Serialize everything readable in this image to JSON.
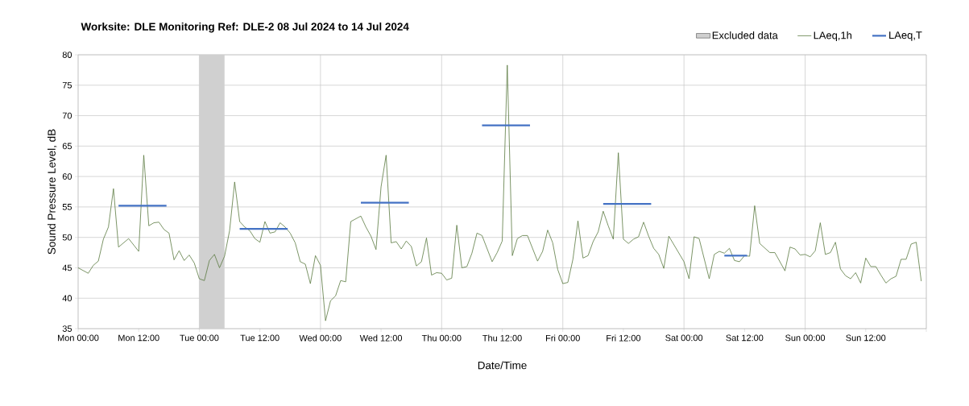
{
  "chart_data": {
    "type": "line",
    "title": "Worksite: DLE    Monitoring Ref: DLE-2     08 Jul 2024 to 14 Jul 2024",
    "xlabel": "Date/Time",
    "ylabel": "Sound Pressure Level, dB",
    "xlim": [
      "2024-07-08T00:00",
      "2024-07-15T00:00"
    ],
    "ylim": [
      35,
      80
    ],
    "xticks": [
      {
        "value": "2024-07-08T00:00",
        "label": "Mon 00:00"
      },
      {
        "value": "2024-07-08T12:00",
        "label": "Mon 12:00"
      },
      {
        "value": "2024-07-09T00:00",
        "label": "Tue 00:00"
      },
      {
        "value": "2024-07-09T12:00",
        "label": "Tue 12:00"
      },
      {
        "value": "2024-07-10T00:00",
        "label": "Wed 00:00"
      },
      {
        "value": "2024-07-10T12:00",
        "label": "Wed 12:00"
      },
      {
        "value": "2024-07-11T00:00",
        "label": "Thu 00:00"
      },
      {
        "value": "2024-07-11T12:00",
        "label": "Thu 12:00"
      },
      {
        "value": "2024-07-12T00:00",
        "label": "Fri 00:00"
      },
      {
        "value": "2024-07-12T12:00",
        "label": "Fri 12:00"
      },
      {
        "value": "2024-07-13T00:00",
        "label": "Sat 00:00"
      },
      {
        "value": "2024-07-13T12:00",
        "label": "Sat 12:00"
      },
      {
        "value": "2024-07-14T00:00",
        "label": "Sun 00:00"
      },
      {
        "value": "2024-07-14T12:00",
        "label": "Sun 12:00"
      },
      {
        "value": "2024-07-15T00:00",
        "label": null
      }
    ],
    "yticks": [
      35,
      40,
      45,
      50,
      55,
      60,
      65,
      70,
      75,
      80
    ],
    "grid": true,
    "legend": "top right",
    "bands": [
      {
        "axis": "x",
        "from": "2024-07-09T00:00",
        "to": "2024-07-09T05:00",
        "label": "Excluded data",
        "color": "#d0d0d0"
      }
    ],
    "series": [
      {
        "name": "LAeq,1h",
        "color": "#5a7a40",
        "x": [
          "2024-07-08T00:00",
          "2024-07-08T02:00",
          "2024-07-08T03:00",
          "2024-07-08T04:00",
          "2024-07-08T05:00",
          "2024-07-08T06:00",
          "2024-07-08T07:00",
          "2024-07-08T08:00",
          "2024-07-08T10:00",
          "2024-07-08T12:00",
          "2024-07-08T13:00",
          "2024-07-08T14:00",
          "2024-07-08T15:00",
          "2024-07-08T16:00",
          "2024-07-08T17:00",
          "2024-07-08T18:00",
          "2024-07-08T19:00",
          "2024-07-08T20:00",
          "2024-07-08T21:00",
          "2024-07-08T22:00",
          "2024-07-08T23:00",
          "2024-07-09T00:00",
          "2024-07-09T01:00",
          "2024-07-09T02:00",
          "2024-07-09T03:00",
          "2024-07-09T04:00",
          "2024-07-09T05:00",
          "2024-07-09T06:00",
          "2024-07-09T07:00",
          "2024-07-09T08:00",
          "2024-07-09T09:00",
          "2024-07-09T10:00",
          "2024-07-09T11:00",
          "2024-07-09T12:00",
          "2024-07-09T13:00",
          "2024-07-09T14:00",
          "2024-07-09T15:00",
          "2024-07-09T16:00",
          "2024-07-09T17:00",
          "2024-07-09T18:00",
          "2024-07-09T19:00",
          "2024-07-09T20:00",
          "2024-07-09T21:00",
          "2024-07-09T22:00",
          "2024-07-09T23:00",
          "2024-07-10T00:00",
          "2024-07-10T01:00",
          "2024-07-10T02:00",
          "2024-07-10T03:00",
          "2024-07-10T04:00",
          "2024-07-10T05:00",
          "2024-07-10T06:00",
          "2024-07-10T08:00",
          "2024-07-10T09:00",
          "2024-07-10T10:00",
          "2024-07-10T11:00",
          "2024-07-10T12:00",
          "2024-07-10T13:00",
          "2024-07-10T14:00",
          "2024-07-10T15:00",
          "2024-07-10T16:00",
          "2024-07-10T17:00",
          "2024-07-10T18:00",
          "2024-07-10T19:00",
          "2024-07-10T20:00",
          "2024-07-10T21:00",
          "2024-07-10T22:00",
          "2024-07-10T23:00",
          "2024-07-11T00:00",
          "2024-07-11T01:00",
          "2024-07-11T02:00",
          "2024-07-11T03:00",
          "2024-07-11T04:00",
          "2024-07-11T05:00",
          "2024-07-11T06:00",
          "2024-07-11T07:00",
          "2024-07-11T08:00",
          "2024-07-11T10:00",
          "2024-07-11T11:00",
          "2024-07-11T12:00",
          "2024-07-11T13:00",
          "2024-07-11T14:00",
          "2024-07-11T15:00",
          "2024-07-11T16:00",
          "2024-07-11T17:00",
          "2024-07-11T19:00",
          "2024-07-11T20:00",
          "2024-07-11T21:00",
          "2024-07-11T22:00",
          "2024-07-11T23:00",
          "2024-07-12T00:00",
          "2024-07-12T01:00",
          "2024-07-12T02:00",
          "2024-07-12T03:00",
          "2024-07-12T04:00",
          "2024-07-12T05:00",
          "2024-07-12T06:00",
          "2024-07-12T07:00",
          "2024-07-12T08:00",
          "2024-07-12T09:00",
          "2024-07-12T10:00",
          "2024-07-12T11:00",
          "2024-07-12T12:00",
          "2024-07-12T13:00",
          "2024-07-12T14:00",
          "2024-07-12T15:00",
          "2024-07-12T16:00",
          "2024-07-12T17:00",
          "2024-07-12T18:00",
          "2024-07-12T19:00",
          "2024-07-12T20:00",
          "2024-07-12T21:00",
          "2024-07-13T00:00",
          "2024-07-13T01:00",
          "2024-07-13T02:00",
          "2024-07-13T03:00",
          "2024-07-13T05:00",
          "2024-07-13T06:00",
          "2024-07-13T07:00",
          "2024-07-13T08:00",
          "2024-07-13T09:00",
          "2024-07-13T10:00",
          "2024-07-13T11:00",
          "2024-07-13T12:00",
          "2024-07-13T13:00",
          "2024-07-13T14:00",
          "2024-07-13T15:00",
          "2024-07-13T17:00",
          "2024-07-13T18:00",
          "2024-07-13T20:00",
          "2024-07-13T21:00",
          "2024-07-13T22:00",
          "2024-07-13T23:00",
          "2024-07-14T00:00",
          "2024-07-14T01:00",
          "2024-07-14T02:00",
          "2024-07-14T03:00",
          "2024-07-14T04:00",
          "2024-07-14T05:00",
          "2024-07-14T06:00",
          "2024-07-14T07:00",
          "2024-07-14T08:00",
          "2024-07-14T09:00",
          "2024-07-14T10:00",
          "2024-07-14T11:00",
          "2024-07-14T12:00",
          "2024-07-14T13:00",
          "2024-07-14T14:00",
          "2024-07-14T15:00",
          "2024-07-14T16:00",
          "2024-07-14T17:00",
          "2024-07-14T18:00",
          "2024-07-14T19:00",
          "2024-07-14T20:00",
          "2024-07-14T21:00",
          "2024-07-14T22:00",
          "2024-07-14T23:00"
        ],
        "values": [
          45.0,
          44.1,
          45.4,
          46.1,
          49.7,
          51.7,
          58.0,
          48.4,
          49.8,
          47.7,
          63.5,
          51.9,
          52.4,
          52.5,
          51.3,
          50.7,
          46.3,
          47.8,
          46.2,
          47.1,
          45.8,
          43.2,
          42.9,
          46.2,
          47.2,
          45.0,
          46.9,
          51.1,
          59.1,
          52.6,
          51.7,
          51.1,
          49.8,
          49.2,
          52.6,
          50.7,
          50.9,
          52.4,
          51.7,
          50.7,
          49.1,
          46.0,
          45.6,
          42.4,
          47.0,
          45.4,
          36.3,
          39.6,
          40.4,
          42.9,
          42.7,
          52.6,
          53.5,
          51.7,
          50.2,
          48.0,
          58.3,
          63.5,
          49.1,
          49.3,
          48.1,
          49.4,
          48.5,
          45.3,
          46.0,
          49.9,
          43.8,
          44.2,
          44.1,
          43.0,
          43.3,
          52.0,
          45.0,
          45.2,
          47.4,
          50.7,
          50.3,
          46.0,
          47.5,
          49.4,
          78.3,
          47.0,
          49.8,
          50.3,
          50.3,
          46.1,
          47.7,
          51.2,
          49.1,
          44.7,
          42.4,
          42.6,
          46.4,
          52.7,
          46.6,
          47.0,
          49.3,
          50.9,
          54.3,
          51.9,
          49.7,
          63.9,
          49.7,
          49.0,
          49.7,
          50.1,
          52.5,
          50.2,
          48.2,
          47.2,
          44.9,
          50.2,
          46.0,
          43.2,
          50.1,
          49.8,
          43.2,
          47.2,
          47.7,
          47.4,
          48.2,
          46.2,
          46.0,
          47.0,
          46.9,
          55.2,
          49.0,
          47.5,
          47.5,
          44.5,
          48.4,
          48.1,
          47.1,
          47.2,
          46.8,
          47.8,
          52.4,
          47.2,
          47.5,
          49.2,
          44.8,
          43.7,
          43.2,
          44.2,
          42.5,
          46.6,
          45.2,
          45.2,
          43.8,
          42.5,
          43.2,
          43.6,
          46.4,
          46.4,
          48.9,
          49.2,
          42.8
        ]
      },
      {
        "name": "LAeq,T",
        "color": "#4472c4",
        "x": [
          "2024-07-08T08:00",
          "2024-07-08T17:30"
        ],
        "values": [
          55.2,
          55.2
        ]
      },
      {
        "color": "#4472c4",
        "x": [
          "2024-07-09T08:00",
          "2024-07-09T17:30"
        ],
        "values": [
          51.4,
          51.4
        ]
      },
      {
        "color": "#4472c4",
        "x": [
          "2024-07-10T08:00",
          "2024-07-10T17:30"
        ],
        "values": [
          55.7,
          55.7
        ]
      },
      {
        "color": "#4472c4",
        "x": [
          "2024-07-11T08:00",
          "2024-07-11T17:30"
        ],
        "values": [
          68.4,
          68.4
        ]
      },
      {
        "color": "#4472c4",
        "x": [
          "2024-07-12T08:00",
          "2024-07-12T17:30"
        ],
        "values": [
          55.5,
          55.5
        ]
      },
      {
        "color": "#4472c4",
        "x": [
          "2024-07-13T08:00",
          "2024-07-13T12:30"
        ],
        "values": [
          47.0,
          47.0
        ]
      }
    ]
  }
}
